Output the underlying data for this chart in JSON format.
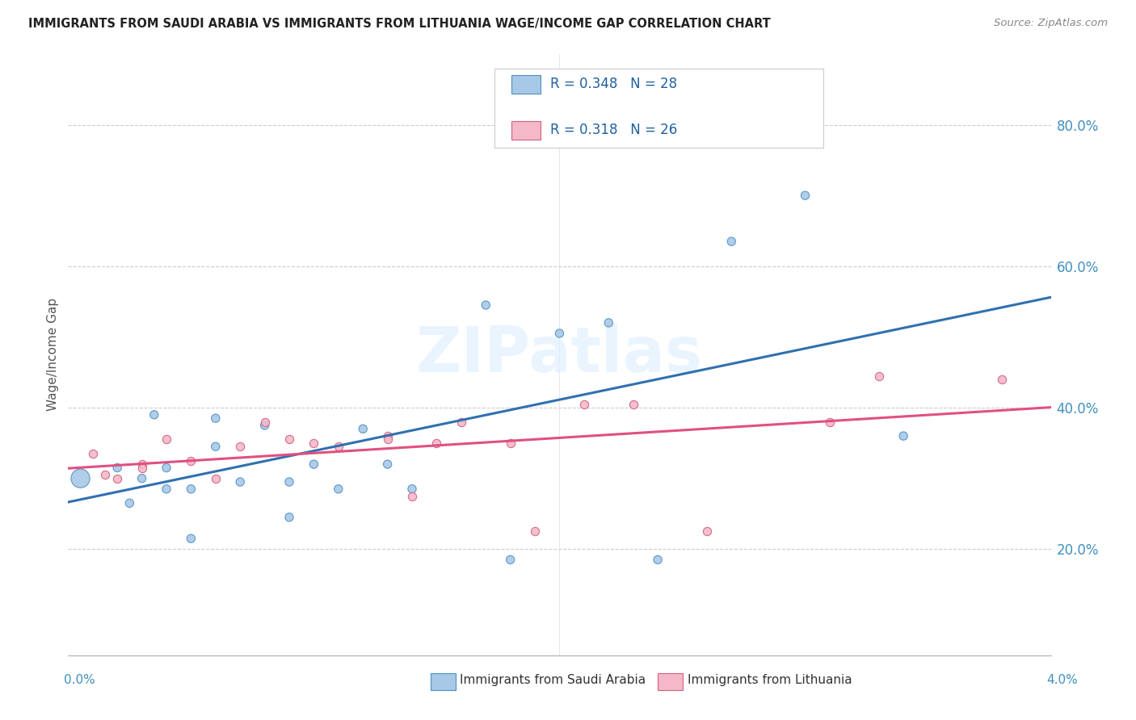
{
  "title": "IMMIGRANTS FROM SAUDI ARABIA VS IMMIGRANTS FROM LITHUANIA WAGE/INCOME GAP CORRELATION CHART",
  "source": "Source: ZipAtlas.com",
  "ylabel": "Wage/Income Gap",
  "y_ticks": [
    0.2,
    0.4,
    0.6,
    0.8
  ],
  "y_tick_labels": [
    "20.0%",
    "40.0%",
    "60.0%",
    "80.0%"
  ],
  "x_range": [
    0.0,
    0.04
  ],
  "y_range": [
    0.05,
    0.9
  ],
  "watermark": "ZIPatlas",
  "blue_color": "#a8c8e8",
  "pink_color": "#f4b8c8",
  "blue_line_color": "#3070b0",
  "pink_line_color": "#e05080",
  "saudi_x": [
    0.0005,
    0.002,
    0.0025,
    0.003,
    0.0035,
    0.004,
    0.004,
    0.005,
    0.005,
    0.006,
    0.006,
    0.007,
    0.008,
    0.009,
    0.009,
    0.01,
    0.011,
    0.012,
    0.013,
    0.014,
    0.017,
    0.018,
    0.02,
    0.022,
    0.024,
    0.027,
    0.03,
    0.034
  ],
  "saudi_y": [
    0.3,
    0.315,
    0.265,
    0.3,
    0.39,
    0.315,
    0.285,
    0.285,
    0.215,
    0.345,
    0.385,
    0.295,
    0.375,
    0.295,
    0.245,
    0.32,
    0.285,
    0.37,
    0.32,
    0.285,
    0.545,
    0.185,
    0.505,
    0.52,
    0.185,
    0.635,
    0.7,
    0.36
  ],
  "saudi_size_large": 280,
  "saudi_size_small": 55,
  "saudi_large_idx": 0,
  "lithuania_x": [
    0.001,
    0.0015,
    0.002,
    0.003,
    0.003,
    0.004,
    0.005,
    0.006,
    0.007,
    0.008,
    0.009,
    0.01,
    0.011,
    0.013,
    0.013,
    0.014,
    0.015,
    0.016,
    0.018,
    0.019,
    0.021,
    0.023,
    0.026,
    0.031,
    0.033,
    0.038
  ],
  "lithuania_y": [
    0.335,
    0.305,
    0.3,
    0.32,
    0.315,
    0.355,
    0.325,
    0.3,
    0.345,
    0.38,
    0.355,
    0.35,
    0.345,
    0.36,
    0.355,
    0.275,
    0.35,
    0.38,
    0.35,
    0.225,
    0.405,
    0.405,
    0.225,
    0.38,
    0.445,
    0.44
  ],
  "legend_r1": "0.348",
  "legend_n1": "28",
  "legend_r2": "0.318",
  "legend_n2": "26",
  "legend_bottom_label1": "Immigrants from Saudi Arabia",
  "legend_bottom_label2": "Immigrants from Lithuania"
}
